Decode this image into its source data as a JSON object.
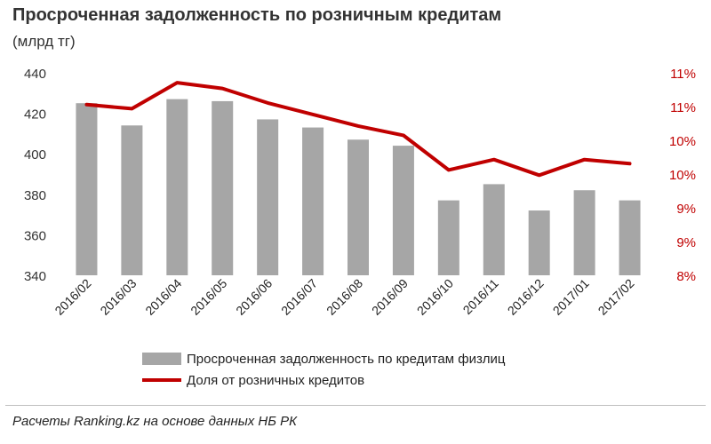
{
  "title": "Просроченная задолженность по розничным кредитам",
  "subtitle": "(млрд тг)",
  "source": "Расчеты Ranking.kz на основе данных  НБ РК",
  "colors": {
    "bar": "#a6a6a6",
    "line": "#c00000",
    "left_axis_text": "#333333",
    "right_axis_text": "#c00000"
  },
  "chart_data": {
    "type": "bar",
    "categories": [
      "2016/02",
      "2016/03",
      "2016/04",
      "2016/05",
      "2016/06",
      "2016/07",
      "2016/08",
      "2016/09",
      "2016/10",
      "2016/11",
      "2016/12",
      "2017/01",
      "2017/02"
    ],
    "series": [
      {
        "name": "Просроченная задолженность по кредитам физлиц",
        "type": "bar",
        "axis": "left",
        "values": [
          425,
          414,
          427,
          426,
          417,
          413,
          407,
          404,
          377,
          385,
          372,
          382,
          377
        ]
      },
      {
        "name": "Доля от розничных кредитов",
        "type": "line",
        "axis": "right",
        "values": [
          10.95,
          10.88,
          11.33,
          11.23,
          10.98,
          10.78,
          10.58,
          10.42,
          9.82,
          10.0,
          9.73,
          10.0,
          9.93
        ]
      }
    ],
    "left_axis": {
      "min": 340,
      "max": 440,
      "ticks": [
        "340",
        "360",
        "380",
        "400",
        "420",
        "440"
      ]
    },
    "right_axis": {
      "min": 8.0,
      "max": 11.5,
      "ticks": [
        "8%",
        "9%",
        "9%",
        "10%",
        "10%",
        "11%",
        "11%"
      ]
    },
    "legend": [
      "Просроченная задолженность по кредитам физлиц",
      "Доля от розничных кредитов"
    ]
  }
}
